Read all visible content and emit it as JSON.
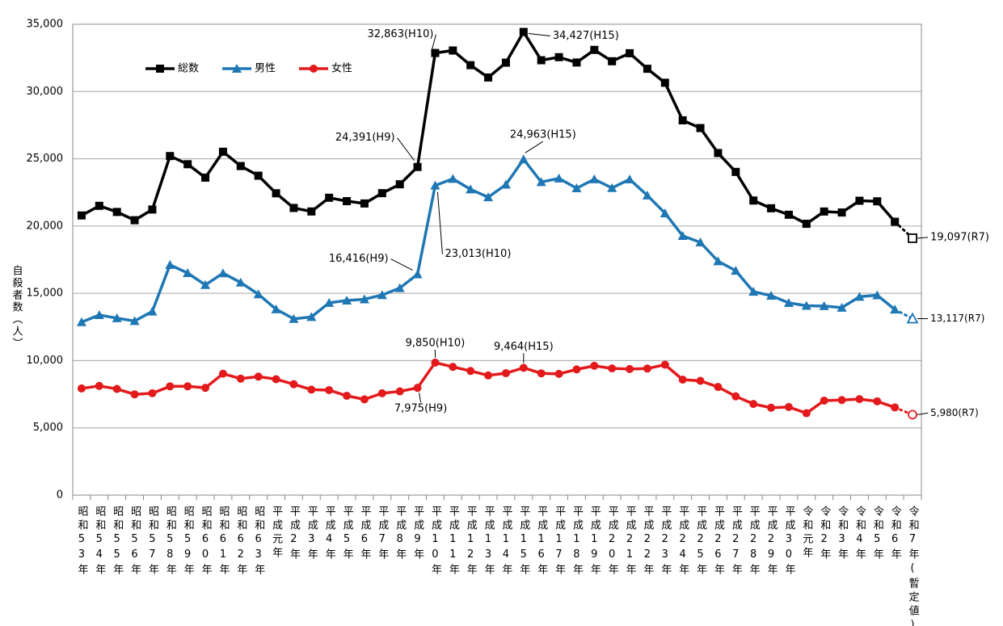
{
  "chart_data": {
    "type": "line",
    "y_label": "自殺者数（人）",
    "categories": [
      "昭和53年",
      "昭和54年",
      "昭和55年",
      "昭和56年",
      "昭和57年",
      "昭和58年",
      "昭和59年",
      "昭和60年",
      "昭和61年",
      "昭和62年",
      "昭和63年",
      "平成元年",
      "平成2年",
      "平成3年",
      "平成4年",
      "平成5年",
      "平成6年",
      "平成7年",
      "平成8年",
      "平成9年",
      "平成10年",
      "平成11年",
      "平成12年",
      "平成13年",
      "平成14年",
      "平成15年",
      "平成16年",
      "平成17年",
      "平成18年",
      "平成19年",
      "平成20年",
      "平成21年",
      "平成22年",
      "平成23年",
      "平成24年",
      "平成25年",
      "平成26年",
      "平成27年",
      "平成28年",
      "平成29年",
      "平成30年",
      "令和元年",
      "令和2年",
      "令和3年",
      "令和4年",
      "令和5年",
      "令和6年",
      "令和7年(暫定値)"
    ],
    "series": [
      {
        "name": "総数",
        "color": "#000000",
        "marker": "square",
        "values": [
          20788,
          21503,
          21048,
          20434,
          21228,
          25202,
          24596,
          23599,
          25524,
          24460,
          23742,
          22436,
          21346,
          21084,
          22104,
          21851,
          21679,
          22445,
          23104,
          24391,
          32863,
          33048,
          31957,
          31042,
          32143,
          34427,
          32325,
          32552,
          32155,
          33093,
          32249,
          32845,
          31690,
          30651,
          27858,
          27283,
          25427,
          24025,
          21897,
          21321,
          20840,
          20169,
          21081,
          21007,
          21881,
          21837,
          20320,
          19097
        ],
        "value_labels": [
          null,
          null,
          null,
          null,
          null,
          null,
          null,
          null,
          null,
          null,
          null,
          null,
          null,
          null,
          null,
          null,
          null,
          null,
          null,
          "24,391(H9)",
          "32,863(H10)",
          null,
          null,
          null,
          null,
          "34,427(H15)",
          null,
          null,
          null,
          null,
          null,
          null,
          null,
          null,
          null,
          null,
          null,
          null,
          null,
          null,
          null,
          null,
          null,
          null,
          null,
          null,
          null,
          "19,097(R7)"
        ]
      },
      {
        "name": "男性",
        "color": "#1f77b4",
        "marker": "triangle",
        "values": [
          12859,
          13386,
          13155,
          12942,
          13654,
          17116,
          16508,
          15624,
          16497,
          15802,
          14934,
          13818,
          13102,
          13242,
          14296,
          14468,
          14560,
          14874,
          15393,
          16416,
          23013,
          23512,
          22727,
          22144,
          23080,
          24963,
          23272,
          23540,
          22813,
          23478,
          22831,
          23472,
          22283,
          20955,
          19273,
          18787,
          17386,
          16681,
          15121,
          14826,
          14290,
          14078,
          14055,
          13939,
          14746,
          14862,
          13801,
          13117
        ],
        "value_labels": [
          null,
          null,
          null,
          null,
          null,
          null,
          null,
          null,
          null,
          null,
          null,
          null,
          null,
          null,
          null,
          null,
          null,
          null,
          null,
          "16,416(H9)",
          "23,013(H10)",
          null,
          null,
          null,
          null,
          "24,963(H15)",
          null,
          null,
          null,
          null,
          null,
          null,
          null,
          null,
          null,
          null,
          null,
          null,
          null,
          null,
          null,
          null,
          null,
          null,
          null,
          null,
          null,
          "13,117(R7)"
        ]
      },
      {
        "name": "女性",
        "color": "#e31a1c",
        "marker": "circle",
        "values": [
          7929,
          8117,
          7893,
          7492,
          7574,
          8086,
          8088,
          7975,
          9027,
          8658,
          8808,
          8618,
          8244,
          7842,
          7808,
          7383,
          7119,
          7571,
          7711,
          7975,
          9850,
          9536,
          9230,
          8898,
          9063,
          9464,
          9053,
          9012,
          9342,
          9615,
          9418,
          9373,
          9407,
          9696,
          8585,
          8496,
          8041,
          7344,
          6776,
          6495,
          6550,
          6091,
          7026,
          7068,
          7135,
          6975,
          6519,
          5980
        ],
        "value_labels": [
          null,
          null,
          null,
          null,
          null,
          null,
          null,
          null,
          null,
          null,
          null,
          null,
          null,
          null,
          null,
          null,
          null,
          null,
          null,
          "7,975(H9)",
          "9,850(H10)",
          null,
          null,
          null,
          null,
          "9,464(H15)",
          null,
          null,
          null,
          null,
          null,
          null,
          null,
          null,
          null,
          null,
          null,
          null,
          null,
          null,
          null,
          null,
          null,
          null,
          null,
          null,
          null,
          "5,980(R7)"
        ]
      }
    ],
    "ylim": [
      0,
      35000
    ],
    "yticks": [
      0,
      {
        "value": 5000,
        "label": "5,000"
      },
      {
        "value": 10000,
        "label": "10,000"
      },
      {
        "value": 15000,
        "label": "15,000"
      },
      {
        "value": 20000,
        "label": "20,000"
      },
      {
        "value": 25000,
        "label": "25,000"
      },
      {
        "value": 30000,
        "label": "30,000"
      },
      {
        "value": 35000,
        "label": "35,000"
      }
    ],
    "grid": true,
    "legend_position": "upper-left"
  }
}
